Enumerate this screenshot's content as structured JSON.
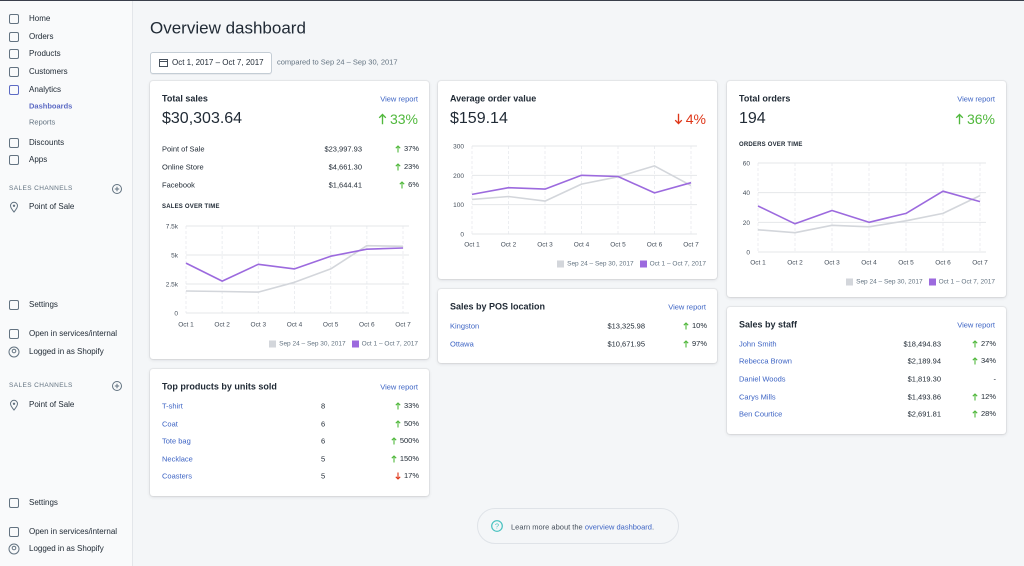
{
  "sidebar": {
    "nav": [
      "Home",
      "Orders",
      "Products",
      "Customers",
      "Analytics"
    ],
    "analytics_sub": [
      "Dashboards",
      "Reports"
    ],
    "nav2": [
      "Discounts",
      "Apps"
    ],
    "sections": [
      {
        "heading": "SALES CHANNELS",
        "channel": "Point of Sale",
        "settings": "Settings",
        "open": "Open in services/internal",
        "account": "Logged in as Shopify"
      },
      {
        "heading": "SALES CHANNELS",
        "channel": "Point of Sale",
        "settings": "Settings",
        "open": "Open in services/internal",
        "account": "Logged in as Shopify"
      }
    ]
  },
  "header": {
    "title": "Overview dashboard",
    "date_range": "Oct 1, 2017 – Oct 7, 2017",
    "comparison": "compared to Sep 24 – Sep 30, 2017"
  },
  "cards": {
    "total_sales": {
      "title": "Total sales",
      "link": "View report",
      "value": "$30,303.64",
      "change": "33%",
      "trend": "up",
      "rows": [
        {
          "label": "Point of Sale",
          "amount": "$23,997.93",
          "change": "37%",
          "trend": "up"
        },
        {
          "label": "Online Store",
          "amount": "$4,661.30",
          "change": "23%",
          "trend": "up"
        },
        {
          "label": "Facebook",
          "amount": "$1,644.41",
          "change": "6%",
          "trend": "up"
        }
      ],
      "chart": {
        "type": "line",
        "title": "SALES OVER TIME",
        "x": [
          "Oct 1",
          "Oct 2",
          "Oct 3",
          "Oct 4",
          "Oct 5",
          "Oct 6",
          "Oct 7"
        ],
        "series": [
          {
            "name": "Sep 24 – Sep 30, 2017",
            "color": "#d3d6db",
            "values": [
              1900,
              1850,
              1800,
              2650,
              3800,
              5800,
              5750
            ]
          },
          {
            "name": "Oct 1 – Oct 7, 2017",
            "color": "#9c6ade",
            "values": [
              4300,
              2750,
              4200,
              3800,
              4900,
              5500,
              5600
            ]
          }
        ],
        "ylim": [
          0,
          7500
        ],
        "yticks": [
          0,
          {
            "value": 2500,
            "label": "2.5k"
          },
          {
            "value": 5000,
            "label": "5k"
          },
          {
            "value": 7500,
            "label": "7.5k"
          }
        ],
        "grid": true
      }
    },
    "avg_order": {
      "title": "Average order value",
      "value": "$159.14",
      "change": "4%",
      "trend": "down",
      "chart": {
        "type": "line",
        "x": [
          "Oct 1",
          "Oct 2",
          "Oct 3",
          "Oct 4",
          "Oct 5",
          "Oct 6",
          "Oct 7"
        ],
        "series": [
          {
            "name": "Sep 24 – Sep 30, 2017",
            "color": "#d3d6db",
            "values": [
              118,
              128,
              112,
              170,
              195,
              232,
              165
            ]
          },
          {
            "name": "Oct 1 – Oct 7, 2017",
            "color": "#9c6ade",
            "values": [
              135,
              158,
              153,
              200,
              196,
              140,
              175
            ]
          }
        ],
        "ylim": [
          0,
          300
        ],
        "yticks": [
          0,
          100,
          200,
          300
        ],
        "grid": true
      }
    },
    "total_orders": {
      "title": "Total orders",
      "link": "View report",
      "value": "194",
      "change": "36%",
      "trend": "up",
      "chart": {
        "type": "line",
        "title": "ORDERS OVER TIME",
        "x": [
          "Oct 1",
          "Oct 2",
          "Oct 3",
          "Oct 4",
          "Oct 5",
          "Oct 6",
          "Oct 7"
        ],
        "series": [
          {
            "name": "Sep 24 – Sep 30, 2017",
            "color": "#d3d6db",
            "values": [
              15,
              13,
              18,
              17,
              21,
              26,
              38
            ]
          },
          {
            "name": "Oct 1 – Oct 7, 2017",
            "color": "#9c6ade",
            "values": [
              31,
              19,
              28,
              20,
              26,
              41,
              34
            ]
          }
        ],
        "ylim": [
          0,
          60
        ],
        "yticks": [
          0,
          20,
          40,
          60
        ],
        "grid": true
      }
    },
    "top_products": {
      "title": "Top products by units sold",
      "link": "View report",
      "rows": [
        {
          "label": "T-shirt",
          "units": 8,
          "change": "33%",
          "trend": "up"
        },
        {
          "label": "Coat",
          "units": 6,
          "change": "50%",
          "trend": "up"
        },
        {
          "label": "Tote bag",
          "units": 6,
          "change": "500%",
          "trend": "up"
        },
        {
          "label": "Necklace",
          "units": 5,
          "change": "150%",
          "trend": "up"
        },
        {
          "label": "Coasters",
          "units": 5,
          "change": "17%",
          "trend": "down"
        }
      ]
    },
    "pos": {
      "title": "Sales by POS location",
      "link": "View report",
      "rows": [
        {
          "label": "Kingston",
          "amount": "$13,325.98",
          "change": "10%",
          "trend": "up"
        },
        {
          "label": "Ottawa",
          "amount": "$10,671.95",
          "change": "97%",
          "trend": "up"
        }
      ]
    },
    "staff": {
      "title": "Sales by staff",
      "link": "View report",
      "rows": [
        {
          "label": "John Smith",
          "amount": "$18,494.83",
          "change": "27%",
          "trend": "up"
        },
        {
          "label": "Rebecca Brown",
          "amount": "$2,189.94",
          "change": "34%",
          "trend": "up"
        },
        {
          "label": "Daniel Woods",
          "amount": "$1,819.30",
          "change": "-",
          "trend": "none"
        },
        {
          "label": "Carys Mills",
          "amount": "$1,493.86",
          "change": "12%",
          "trend": "up"
        },
        {
          "label": "Ben Courtice",
          "amount": "$2,691.81",
          "change": "28%",
          "trend": "up"
        }
      ]
    }
  },
  "footer": {
    "text": "Learn more about the ",
    "link": "overview dashboard",
    "end": "."
  }
}
